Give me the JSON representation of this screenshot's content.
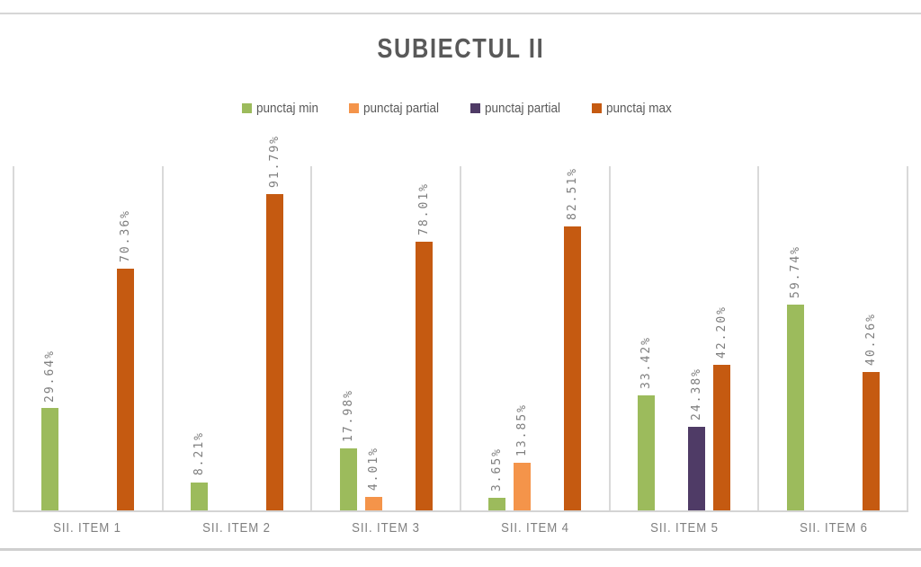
{
  "title": "SUBIECTUL II",
  "chart_data": {
    "type": "bar",
    "title": "SUBIECTUL II",
    "categories": [
      "SII. ITEM 1",
      "SII. ITEM 2",
      "SII. ITEM 3",
      "SII. ITEM 4",
      "SII. ITEM 5",
      "SII. ITEM 6"
    ],
    "series": [
      {
        "name": "punctaj min",
        "color": "#9CBB5C",
        "values": [
          29.64,
          8.21,
          17.98,
          3.65,
          33.42,
          59.74
        ],
        "labels": [
          "29.64%",
          "8.21%",
          "17.98%",
          "3.65%",
          "33.42%",
          "59.74%"
        ]
      },
      {
        "name": "punctaj partial",
        "color": "#F4944A",
        "values": [
          null,
          null,
          4.01,
          13.85,
          null,
          null
        ],
        "labels": [
          null,
          null,
          "4.01%",
          "13.85%",
          null,
          null
        ]
      },
      {
        "name": "punctaj partial",
        "color": "#4F3B66",
        "values": [
          null,
          null,
          null,
          null,
          24.38,
          null
        ],
        "labels": [
          null,
          null,
          null,
          null,
          "24.38%",
          null
        ]
      },
      {
        "name": "punctaj max",
        "color": "#C55A11",
        "values": [
          70.36,
          91.79,
          78.01,
          82.51,
          42.2,
          40.26
        ],
        "labels": [
          "70.36%",
          "91.79%",
          "78.01%",
          "82.51%",
          "42.20%",
          "40.26%"
        ]
      }
    ],
    "ylim": [
      0,
      100
    ],
    "xlabel": "",
    "ylabel": "",
    "grid": "vertical category separators only",
    "legend_position": "top-center",
    "value_label_style": "rotated 90deg, gray",
    "colors": {
      "title_text": "#595959",
      "legend_text": "#595959",
      "value_label_text": "#7F7F7F",
      "axis_label_text": "#7F7F7F",
      "gridline": "#D9D9D9",
      "background": "#FFFFFF"
    }
  }
}
